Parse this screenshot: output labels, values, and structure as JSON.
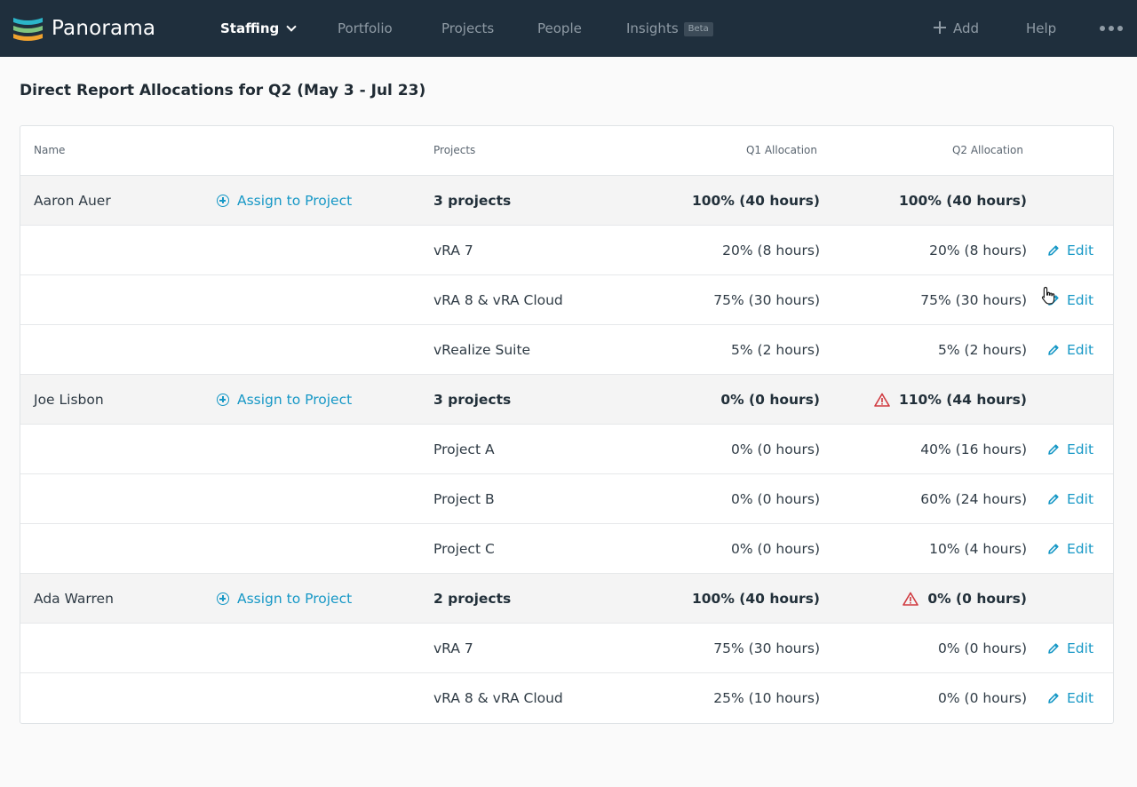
{
  "app": {
    "name": "Panorama"
  },
  "nav": {
    "staffing": "Staffing",
    "portfolio": "Portfolio",
    "projects": "Projects",
    "people": "People",
    "insights": "Insights",
    "insights_badge": "Beta",
    "add": "Add",
    "help": "Help"
  },
  "page": {
    "title": "Direct Report Allocations for Q2 (May 3 - Jul 23)"
  },
  "table": {
    "headers": {
      "name": "Name",
      "projects": "Projects",
      "q1": "Q1 Allocation",
      "q2": "Q2 Allocation"
    },
    "assign_label": "Assign to Project",
    "edit_label": "Edit",
    "people": [
      {
        "name": "Aaron Auer",
        "summary": {
          "projects": "3 projects",
          "q1": "100% (40 hours)",
          "q2": "100% (40 hours)",
          "warning": false
        },
        "rows": [
          {
            "project": "vRA 7",
            "q1": "20% (8 hours)",
            "q2": "20% (8 hours)"
          },
          {
            "project": "vRA 8 & vRA Cloud",
            "q1": "75% (30 hours)",
            "q2": "75% (30 hours)"
          },
          {
            "project": "vRealize Suite",
            "q1": "5% (2 hours)",
            "q2": "5% (2 hours)"
          }
        ]
      },
      {
        "name": "Joe Lisbon",
        "summary": {
          "projects": "3 projects",
          "q1": "0% (0 hours)",
          "q2": "110% (44 hours)",
          "warning": true
        },
        "rows": [
          {
            "project": "Project A",
            "q1": "0% (0 hours)",
            "q2": "40% (16 hours)"
          },
          {
            "project": "Project B",
            "q1": "0% (0 hours)",
            "q2": "60% (24 hours)"
          },
          {
            "project": "Project C",
            "q1": "0% (0 hours)",
            "q2": "10% (4 hours)"
          }
        ]
      },
      {
        "name": "Ada Warren",
        "summary": {
          "projects": "2 projects",
          "q1": "100% (40 hours)",
          "q2": "0% (0 hours)",
          "warning": true
        },
        "rows": [
          {
            "project": "vRA 7",
            "q1": "75% (30 hours)",
            "q2": "0% (0 hours)"
          },
          {
            "project": "vRA 8 & vRA Cloud",
            "q1": "25% (10 hours)",
            "q2": "0% (0 hours)"
          }
        ]
      }
    ]
  },
  "colors": {
    "header_bg": "#1f2f3d",
    "accent": "#1798c6",
    "warning": "#d0393f"
  }
}
